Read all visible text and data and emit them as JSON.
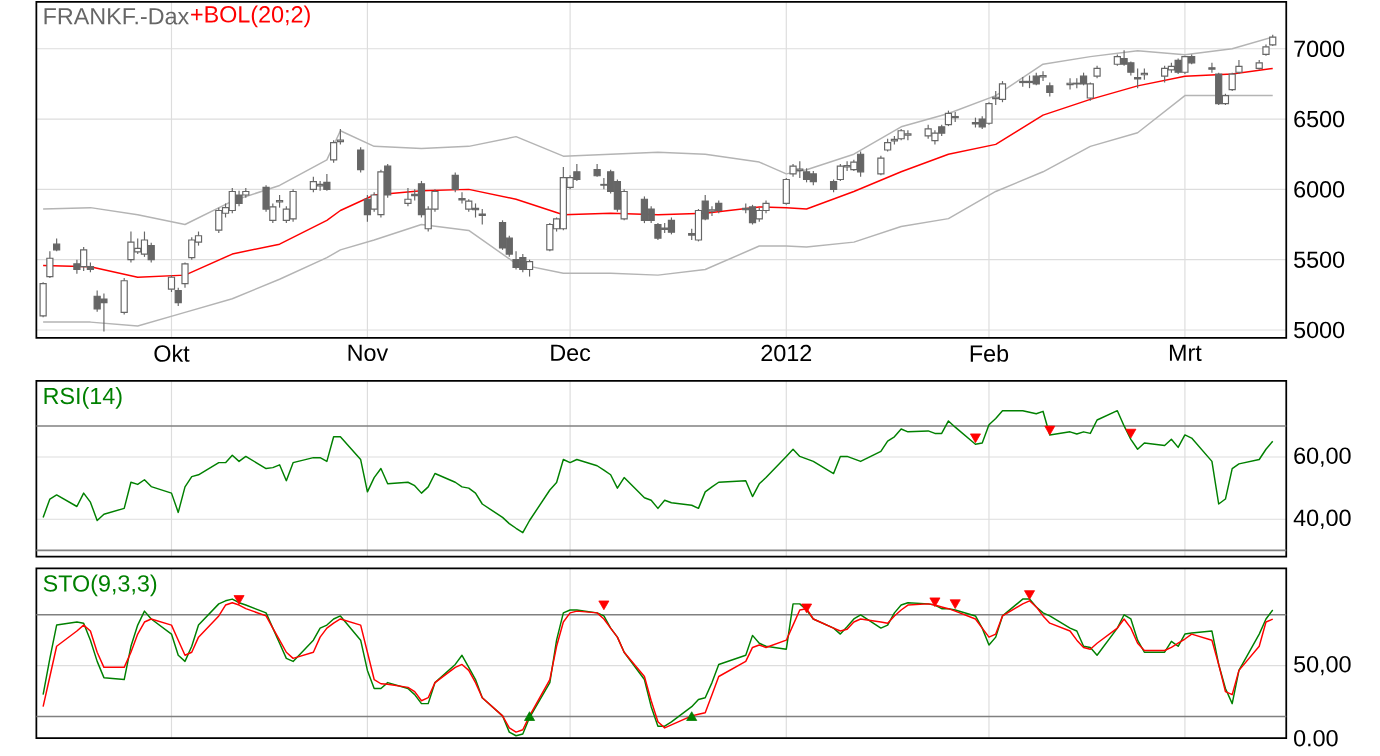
{
  "chart_data": [
    {
      "type": "candlestick",
      "title": "FRANKF.-Dax",
      "color": "#666666",
      "x": [
        "2011-09-14",
        "2011-09-15",
        "2011-09-16",
        "2011-09-19",
        "2011-09-20",
        "2011-09-21",
        "2011-09-22",
        "2011-09-23",
        "2011-09-26",
        "2011-09-27",
        "2011-09-28",
        "2011-09-29",
        "2011-09-30",
        "2011-10-03",
        "2011-10-04",
        "2011-10-05",
        "2011-10-06",
        "2011-10-07",
        "2011-10-10",
        "2011-10-11",
        "2011-10-12",
        "2011-10-13",
        "2011-10-14",
        "2011-10-17",
        "2011-10-18",
        "2011-10-19",
        "2011-10-20",
        "2011-10-21",
        "2011-10-24",
        "2011-10-25",
        "2011-10-26",
        "2011-10-27",
        "2011-10-28",
        "2011-10-31",
        "2011-11-01",
        "2011-11-02",
        "2011-11-03",
        "2011-11-04",
        "2011-11-07",
        "2011-11-08",
        "2011-11-09",
        "2011-11-10",
        "2011-11-11",
        "2011-11-14",
        "2011-11-15",
        "2011-11-16",
        "2011-11-17",
        "2011-11-18",
        "2011-11-21",
        "2011-11-22",
        "2011-11-23",
        "2011-11-24",
        "2011-11-25",
        "2011-11-28",
        "2011-11-29",
        "2011-11-30",
        "2011-12-01",
        "2011-12-02",
        "2011-12-05",
        "2011-12-06",
        "2011-12-07",
        "2011-12-08",
        "2011-12-09",
        "2011-12-12",
        "2011-12-13",
        "2011-12-14",
        "2011-12-15",
        "2011-12-16",
        "2011-12-19",
        "2011-12-20",
        "2011-12-21",
        "2011-12-22",
        "2011-12-23",
        "2011-12-27",
        "2011-12-28",
        "2011-12-29",
        "2011-12-30",
        "2012-01-02",
        "2012-01-03",
        "2012-01-04",
        "2012-01-05",
        "2012-01-06",
        "2012-01-09",
        "2012-01-10",
        "2012-01-11",
        "2012-01-12",
        "2012-01-13",
        "2012-01-16",
        "2012-01-17",
        "2012-01-18",
        "2012-01-19",
        "2012-01-20",
        "2012-01-23",
        "2012-01-24",
        "2012-01-25",
        "2012-01-26",
        "2012-01-27",
        "2012-01-30",
        "2012-01-31",
        "2012-02-01",
        "2012-02-02",
        "2012-02-03",
        "2012-02-06",
        "2012-02-07",
        "2012-02-08",
        "2012-02-09",
        "2012-02-10",
        "2012-02-13",
        "2012-02-14",
        "2012-02-15",
        "2012-02-16",
        "2012-02-17",
        "2012-02-20",
        "2012-02-21",
        "2012-02-22",
        "2012-02-23",
        "2012-02-24",
        "2012-02-27",
        "2012-02-28",
        "2012-02-29",
        "2012-03-01",
        "2012-03-02",
        "2012-03-05",
        "2012-03-06",
        "2012-03-07",
        "2012-03-08",
        "2012-03-09",
        "2012-03-12",
        "2012-03-13",
        "2012-03-14"
      ],
      "ohlc": [
        [
          5100,
          5340,
          5090,
          5330
        ],
        [
          5380,
          5560,
          5370,
          5510
        ],
        [
          5610,
          5650,
          5560,
          5570
        ],
        [
          5470,
          5500,
          5400,
          5430
        ],
        [
          5450,
          5590,
          5420,
          5570
        ],
        [
          5450,
          5480,
          5410,
          5430
        ],
        [
          5240,
          5280,
          5130,
          5150
        ],
        [
          5220,
          5260,
          4990,
          5195
        ],
        [
          5125,
          5370,
          5110,
          5350
        ],
        [
          5500,
          5700,
          5480,
          5625
        ],
        [
          5555,
          5650,
          5540,
          5580
        ],
        [
          5540,
          5700,
          5520,
          5640
        ],
        [
          5600,
          5620,
          5480,
          5500
        ],
        [
          5290,
          5390,
          5270,
          5375
        ],
        [
          5280,
          5300,
          5170,
          5195
        ],
        [
          5330,
          5480,
          5300,
          5470
        ],
        [
          5515,
          5660,
          5500,
          5640
        ],
        [
          5625,
          5700,
          5600,
          5670
        ],
        [
          5710,
          5870,
          5690,
          5850
        ],
        [
          5830,
          5900,
          5800,
          5870
        ],
        [
          5850,
          6010,
          5830,
          5985
        ],
        [
          5960,
          5990,
          5880,
          5900
        ],
        [
          5960,
          6010,
          5940,
          5985
        ],
        [
          6014,
          6030,
          5840,
          5860
        ],
        [
          5780,
          5900,
          5760,
          5875
        ],
        [
          5910,
          5960,
          5870,
          5920
        ],
        [
          5780,
          5880,
          5760,
          5860
        ],
        [
          5790,
          6000,
          5770,
          5985
        ],
        [
          6000,
          6090,
          5980,
          6055
        ],
        [
          6025,
          6060,
          5990,
          6035
        ],
        [
          6050,
          6110,
          5990,
          6000
        ],
        [
          6210,
          6350,
          6190,
          6333
        ],
        [
          6340,
          6430,
          6320,
          6350
        ],
        [
          6280,
          6300,
          6120,
          6140
        ],
        [
          5930,
          5960,
          5770,
          5820
        ],
        [
          5860,
          5980,
          5840,
          5960
        ],
        [
          5820,
          6140,
          5800,
          6125
        ],
        [
          6165,
          6180,
          5940,
          5960
        ],
        [
          5900,
          6010,
          5880,
          5930
        ],
        [
          5955,
          6000,
          5920,
          5965
        ],
        [
          6040,
          6060,
          5800,
          5820
        ],
        [
          5720,
          5880,
          5700,
          5860
        ],
        [
          5860,
          6000,
          5840,
          5985
        ],
        [
          6100,
          6120,
          5980,
          6000
        ],
        [
          5935,
          5980,
          5900,
          5925
        ],
        [
          5860,
          5930,
          5840,
          5917
        ],
        [
          5865,
          5900,
          5800,
          5855
        ],
        [
          5825,
          5860,
          5750,
          5815
        ],
        [
          5764,
          5780,
          5570,
          5583
        ],
        [
          5653,
          5670,
          5520,
          5540
        ],
        [
          5500,
          5560,
          5430,
          5445
        ],
        [
          5514,
          5540,
          5410,
          5430
        ],
        [
          5430,
          5500,
          5380,
          5486
        ],
        [
          5570,
          5760,
          5560,
          5750
        ],
        [
          5720,
          5800,
          5700,
          5790
        ],
        [
          5720,
          6160,
          5710,
          6083
        ],
        [
          6014,
          6100,
          6000,
          6083
        ],
        [
          6125,
          6180,
          6060,
          6070
        ],
        [
          6140,
          6180,
          6090,
          6097
        ],
        [
          6035,
          6080,
          6000,
          6030
        ],
        [
          6125,
          6140,
          5970,
          5985
        ],
        [
          6055,
          6070,
          5840,
          5860
        ],
        [
          5790,
          6000,
          5780,
          5985
        ],
        [
          5930,
          5950,
          5760,
          5780
        ],
        [
          5860,
          5880,
          5760,
          5780
        ],
        [
          5750,
          5760,
          5640,
          5653
        ],
        [
          5715,
          5760,
          5690,
          5725
        ],
        [
          5780,
          5800,
          5680,
          5695
        ],
        [
          5685,
          5720,
          5640,
          5675
        ],
        [
          5640,
          5860,
          5630,
          5850
        ],
        [
          5917,
          5960,
          5780,
          5790
        ],
        [
          5845,
          5880,
          5810,
          5855
        ],
        [
          5900,
          5920,
          5830,
          5850
        ],
        [
          5865,
          5900,
          5830,
          5855
        ],
        [
          5875,
          5890,
          5750,
          5764
        ],
        [
          5790,
          5870,
          5770,
          5850
        ],
        [
          5850,
          5920,
          5830,
          5900
        ],
        [
          5900,
          6080,
          5890,
          6070
        ],
        [
          6110,
          6180,
          6090,
          6165
        ],
        [
          6135,
          6200,
          6080,
          6145
        ],
        [
          6125,
          6150,
          6050,
          6070
        ],
        [
          6110,
          6130,
          6030,
          6055
        ],
        [
          6055,
          6070,
          5980,
          6000
        ],
        [
          6070,
          6180,
          6060,
          6165
        ],
        [
          6160,
          6200,
          6130,
          6170
        ],
        [
          6140,
          6210,
          6130,
          6194
        ],
        [
          6250,
          6270,
          6090,
          6125
        ],
        [
          6110,
          6240,
          6100,
          6222
        ],
        [
          6280,
          6360,
          6270,
          6333
        ],
        [
          6345,
          6380,
          6320,
          6355
        ],
        [
          6360,
          6430,
          6350,
          6417
        ],
        [
          6385,
          6420,
          6350,
          6395
        ],
        [
          6380,
          6460,
          6360,
          6430
        ],
        [
          6347,
          6420,
          6320,
          6400
        ],
        [
          6445,
          6460,
          6380,
          6400
        ],
        [
          6460,
          6560,
          6450,
          6540
        ],
        [
          6510,
          6550,
          6480,
          6518
        ],
        [
          6475,
          6510,
          6440,
          6465
        ],
        [
          6500,
          6520,
          6430,
          6445
        ],
        [
          6470,
          6620,
          6460,
          6610
        ],
        [
          6645,
          6700,
          6600,
          6655
        ],
        [
          6640,
          6770,
          6620,
          6750
        ],
        [
          6760,
          6800,
          6730,
          6768
        ],
        [
          6768,
          6810,
          6720,
          6760
        ],
        [
          6805,
          6830,
          6740,
          6750
        ],
        [
          6800,
          6840,
          6770,
          6810
        ],
        [
          6736,
          6760,
          6660,
          6690
        ],
        [
          6745,
          6790,
          6710,
          6755
        ],
        [
          6755,
          6790,
          6720,
          6750
        ],
        [
          6805,
          6830,
          6740,
          6750
        ],
        [
          6650,
          6760,
          6630,
          6750
        ],
        [
          6805,
          6880,
          6790,
          6860
        ],
        [
          6890,
          6960,
          6880,
          6944
        ],
        [
          6930,
          6990,
          6880,
          6890
        ],
        [
          6900,
          6910,
          6810,
          6833
        ],
        [
          6795,
          6860,
          6720,
          6785
        ],
        [
          6815,
          6860,
          6780,
          6825
        ],
        [
          6805,
          6880,
          6760,
          6860
        ],
        [
          6850,
          6900,
          6830,
          6875
        ],
        [
          6917,
          6930,
          6820,
          6833
        ],
        [
          6833,
          6950,
          6820,
          6944
        ],
        [
          6944,
          6960,
          6890,
          6900
        ],
        [
          6865,
          6900,
          6830,
          6855
        ],
        [
          6820,
          6830,
          6600,
          6610
        ],
        [
          6610,
          6680,
          6600,
          6667
        ],
        [
          6710,
          6830,
          6700,
          6820
        ],
        [
          6833,
          6920,
          6820,
          6875
        ],
        [
          6860,
          6920,
          6850,
          6900
        ],
        [
          6960,
          7030,
          6950,
          7014
        ],
        [
          7028,
          7100,
          7020,
          7083
        ]
      ],
      "series": [
        {
          "type": "line",
          "color": "#b4b4b4",
          "x": [
            "2011-09-14",
            "2011-09-21",
            "2011-09-28",
            "2011-10-05",
            "2011-10-12",
            "2011-10-19",
            "2011-10-26",
            "2011-10-28",
            "2011-11-02",
            "2011-11-09",
            "2011-11-16",
            "2011-11-23",
            "2011-11-30",
            "2011-12-07",
            "2011-12-14",
            "2011-12-21",
            "2011-12-29",
            "2012-01-02",
            "2012-01-05",
            "2012-01-12",
            "2012-01-19",
            "2012-01-26",
            "2012-02-02",
            "2012-02-09",
            "2012-02-16",
            "2012-02-23",
            "2012-03-01",
            "2012-03-08",
            "2012-03-14"
          ],
          "values": [
            5860,
            5870,
            5820,
            5750,
            5917,
            6028,
            6210,
            6417,
            6306,
            6290,
            6306,
            6375,
            6236,
            6250,
            6264,
            6250,
            6194,
            6110,
            6140,
            6250,
            6445,
            6540,
            6667,
            6890,
            6944,
            6986,
            6958,
            7000,
            7083
          ]
        },
        {
          "type": "line",
          "name": "+BOL(20;2)",
          "color": "#ff0000",
          "x": [
            "2011-09-14",
            "2011-09-21",
            "2011-09-28",
            "2011-10-05",
            "2011-10-12",
            "2011-10-19",
            "2011-10-26",
            "2011-10-28",
            "2011-11-02",
            "2011-11-09",
            "2011-11-16",
            "2011-11-23",
            "2011-11-30",
            "2011-12-07",
            "2011-12-14",
            "2011-12-21",
            "2011-12-29",
            "2012-01-02",
            "2012-01-05",
            "2012-01-12",
            "2012-01-19",
            "2012-01-26",
            "2012-02-02",
            "2012-02-09",
            "2012-02-16",
            "2012-02-23",
            "2012-03-01",
            "2012-03-08",
            "2012-03-14"
          ],
          "values": [
            5458,
            5450,
            5375,
            5390,
            5540,
            5610,
            5780,
            5850,
            5960,
            5990,
            6000,
            5930,
            5820,
            5830,
            5820,
            5830,
            5875,
            5870,
            5860,
            5985,
            6125,
            6250,
            6320,
            6528,
            6640,
            6736,
            6805,
            6820,
            6860
          ]
        },
        {
          "type": "line",
          "color": "#b4b4b4",
          "x": [
            "2011-09-14",
            "2011-09-21",
            "2011-09-28",
            "2011-10-05",
            "2011-10-12",
            "2011-10-19",
            "2011-10-26",
            "2011-10-28",
            "2011-11-02",
            "2011-11-09",
            "2011-11-16",
            "2011-11-23",
            "2011-11-30",
            "2011-12-07",
            "2011-12-14",
            "2011-12-21",
            "2011-12-29",
            "2012-01-02",
            "2012-01-05",
            "2012-01-12",
            "2012-01-19",
            "2012-01-26",
            "2012-02-02",
            "2012-02-09",
            "2012-02-16",
            "2012-02-23",
            "2012-03-01",
            "2012-03-08",
            "2012-03-14"
          ],
          "values": [
            5056,
            5056,
            5028,
            5125,
            5222,
            5361,
            5514,
            5570,
            5640,
            5750,
            5708,
            5472,
            5403,
            5403,
            5390,
            5430,
            5597,
            5597,
            5590,
            5625,
            5736,
            5792,
            5985,
            6125,
            6306,
            6403,
            6667,
            6667,
            6667
          ]
        }
      ],
      "xlim": [
        "2011-09-13",
        "2012-03-16"
      ],
      "xticks": [
        {
          "value": "2011-10-03",
          "label": "Okt"
        },
        {
          "value": "2011-11-01",
          "label": "Nov"
        },
        {
          "value": "2011-12-01",
          "label": "Dec"
        },
        {
          "value": "2012-01-02",
          "label": "2012"
        },
        {
          "value": "2012-02-01",
          "label": "Feb"
        },
        {
          "value": "2012-03-01",
          "label": "Mrt"
        }
      ],
      "ylim": [
        4944,
        7333
      ],
      "yticks": [
        5000,
        5500,
        6000,
        6500,
        7000
      ],
      "grid": true
    },
    {
      "type": "line",
      "title": "RSI(14)",
      "tick_labels": "y",
      "x": [
        "2011-09-14",
        "2011-09-15",
        "2011-09-16",
        "2011-09-19",
        "2011-09-20",
        "2011-09-21",
        "2011-09-22",
        "2011-09-23",
        "2011-09-26",
        "2011-09-27",
        "2011-09-28",
        "2011-09-29",
        "2011-09-30",
        "2011-10-03",
        "2011-10-04",
        "2011-10-05",
        "2011-10-06",
        "2011-10-07",
        "2011-10-10",
        "2011-10-11",
        "2011-10-12",
        "2011-10-13",
        "2011-10-14",
        "2011-10-17",
        "2011-10-18",
        "2011-10-19",
        "2011-10-20",
        "2011-10-21",
        "2011-10-24",
        "2011-10-25",
        "2011-10-26",
        "2011-10-27",
        "2011-10-28",
        "2011-10-31",
        "2011-11-01",
        "2011-11-02",
        "2011-11-03",
        "2011-11-04",
        "2011-11-07",
        "2011-11-08",
        "2011-11-09",
        "2011-11-10",
        "2011-11-11",
        "2011-11-14",
        "2011-11-15",
        "2011-11-16",
        "2011-11-17",
        "2011-11-18",
        "2011-11-21",
        "2011-11-22",
        "2011-11-23",
        "2011-11-24",
        "2011-11-25",
        "2011-11-28",
        "2011-11-29",
        "2011-11-30",
        "2011-12-01",
        "2011-12-02",
        "2011-12-05",
        "2011-12-06",
        "2011-12-07",
        "2011-12-08",
        "2011-12-09",
        "2011-12-12",
        "2011-12-13",
        "2011-12-14",
        "2011-12-15",
        "2011-12-16",
        "2011-12-19",
        "2011-12-20",
        "2011-12-21",
        "2011-12-22",
        "2011-12-23",
        "2011-12-27",
        "2011-12-28",
        "2011-12-29",
        "2011-12-30",
        "2012-01-02",
        "2012-01-03",
        "2012-01-04",
        "2012-01-05",
        "2012-01-06",
        "2012-01-09",
        "2012-01-10",
        "2012-01-11",
        "2012-01-12",
        "2012-01-13",
        "2012-01-16",
        "2012-01-17",
        "2012-01-18",
        "2012-01-19",
        "2012-01-20",
        "2012-01-23",
        "2012-01-24",
        "2012-01-25",
        "2012-01-26",
        "2012-01-27",
        "2012-01-30",
        "2012-01-31",
        "2012-02-01",
        "2012-02-02",
        "2012-02-03",
        "2012-02-06",
        "2012-02-07",
        "2012-02-08",
        "2012-02-09",
        "2012-02-10",
        "2012-02-13",
        "2012-02-14",
        "2012-02-15",
        "2012-02-16",
        "2012-02-17",
        "2012-02-20",
        "2012-02-21",
        "2012-02-22",
        "2012-02-23",
        "2012-02-24",
        "2012-02-27",
        "2012-02-28",
        "2012-02-29",
        "2012-03-01",
        "2012-03-02",
        "2012-03-05",
        "2012-03-06",
        "2012-03-07",
        "2012-03-08",
        "2012-03-09",
        "2012-03-12",
        "2012-03-13",
        "2012-03-14"
      ],
      "series": [
        {
          "type": "line",
          "color": "#008000",
          "values": [
            40.6,
            46.5,
            47.8,
            44.1,
            48.4,
            45.5,
            39.6,
            41.6,
            43.5,
            51.9,
            51.2,
            52.7,
            50.5,
            48.4,
            42.2,
            50.4,
            53.7,
            54.3,
            58.2,
            58.2,
            60.6,
            58.6,
            60.2,
            56.3,
            56.6,
            57.5,
            52.4,
            58.2,
            59.8,
            59.8,
            58.6,
            66.5,
            66.5,
            59.2,
            48.8,
            53.4,
            56.3,
            51.4,
            51.9,
            50.8,
            48.4,
            50.4,
            54.7,
            51.9,
            50.4,
            50.0,
            48.4,
            44.9,
            40.6,
            38.6,
            37.1,
            35.7,
            39.6,
            49.4,
            51.8,
            59.2,
            58.2,
            59.2,
            57.2,
            55.8,
            54.3,
            50.0,
            53.4,
            46.9,
            46.1,
            43.5,
            46.1,
            45.3,
            44.5,
            43.5,
            48.8,
            50.4,
            51.9,
            52.4,
            47.3,
            51.4,
            53.4,
            60.2,
            62.5,
            60.2,
            59.4,
            58.6,
            54.7,
            60.2,
            60.2,
            59.4,
            58.6,
            61.8,
            65.1,
            66.5,
            69.0,
            68.1,
            68.4,
            67.6,
            67.6,
            71.6,
            69.6,
            64.1,
            64.5,
            70.4,
            72.4,
            74.9,
            74.9,
            74.4,
            73.9,
            74.7,
            67.1,
            68.1,
            67.4,
            68.1,
            67.6,
            71.9,
            74.9,
            70.0,
            65.7,
            62.5,
            64.5,
            63.7,
            65.7,
            63.1,
            67.1,
            66.1,
            58.6,
            44.9,
            46.5,
            56.3,
            57.8,
            59.2,
            62.5,
            65.1
          ]
        },
        {
          "type": "scatter",
          "color": "#ff0000",
          "marker": "triangle",
          "x": [
            "2012-01-30",
            "2012-02-10",
            "2012-02-22"
          ],
          "values": [
            66.5,
            69.0,
            68.0
          ]
        }
      ],
      "ref_lines": [
        {
          "axis": "y",
          "value": 70,
          "color": "#808080"
        },
        {
          "axis": "y",
          "value": 30,
          "color": "#808080"
        }
      ],
      "xlim": [
        "2011-09-13",
        "2012-03-16"
      ],
      "xticks": [
        {
          "value": "2011-10-03",
          "label": null
        },
        {
          "value": "2011-11-01",
          "label": null
        },
        {
          "value": "2011-12-01",
          "label": null
        },
        {
          "value": "2012-01-02",
          "label": null
        },
        {
          "value": "2012-02-01",
          "label": null
        },
        {
          "value": "2012-03-01",
          "label": null
        }
      ],
      "ylim": [
        28,
        84.5
      ],
      "yticks": [
        {
          "value": 40,
          "label": "40,00"
        },
        {
          "value": 60,
          "label": "60,00"
        }
      ],
      "grid": true
    },
    {
      "type": "line",
      "title": "STO(9,3,3)",
      "tick_labels": "y",
      "x": [
        "2011-09-14",
        "2011-09-15",
        "2011-09-16",
        "2011-09-19",
        "2011-09-20",
        "2011-09-21",
        "2011-09-22",
        "2011-09-23",
        "2011-09-26",
        "2011-09-27",
        "2011-09-28",
        "2011-09-29",
        "2011-09-30",
        "2011-10-03",
        "2011-10-04",
        "2011-10-05",
        "2011-10-06",
        "2011-10-07",
        "2011-10-10",
        "2011-10-11",
        "2011-10-12",
        "2011-10-13",
        "2011-10-14",
        "2011-10-17",
        "2011-10-18",
        "2011-10-19",
        "2011-10-20",
        "2011-10-21",
        "2011-10-24",
        "2011-10-25",
        "2011-10-26",
        "2011-10-27",
        "2011-10-28",
        "2011-10-31",
        "2011-11-01",
        "2011-11-02",
        "2011-11-03",
        "2011-11-04",
        "2011-11-07",
        "2011-11-08",
        "2011-11-09",
        "2011-11-10",
        "2011-11-11",
        "2011-11-14",
        "2011-11-15",
        "2011-11-16",
        "2011-11-17",
        "2011-11-18",
        "2011-11-21",
        "2011-11-22",
        "2011-11-23",
        "2011-11-24",
        "2011-11-25",
        "2011-11-28",
        "2011-11-29",
        "2011-11-30",
        "2011-12-01",
        "2011-12-02",
        "2011-12-05",
        "2011-12-06",
        "2011-12-07",
        "2011-12-08",
        "2011-12-09",
        "2011-12-12",
        "2011-12-13",
        "2011-12-14",
        "2011-12-15",
        "2011-12-16",
        "2011-12-19",
        "2011-12-20",
        "2011-12-21",
        "2011-12-22",
        "2011-12-23",
        "2011-12-27",
        "2011-12-28",
        "2011-12-29",
        "2011-12-30",
        "2012-01-02",
        "2012-01-03",
        "2012-01-04",
        "2012-01-05",
        "2012-01-06",
        "2012-01-09",
        "2012-01-10",
        "2012-01-11",
        "2012-01-12",
        "2012-01-13",
        "2012-01-16",
        "2012-01-17",
        "2012-01-18",
        "2012-01-19",
        "2012-01-20",
        "2012-01-23",
        "2012-01-24",
        "2012-01-25",
        "2012-01-26",
        "2012-01-27",
        "2012-01-30",
        "2012-01-31",
        "2012-02-01",
        "2012-02-02",
        "2012-02-03",
        "2012-02-06",
        "2012-02-07",
        "2012-02-08",
        "2012-02-09",
        "2012-02-10",
        "2012-02-13",
        "2012-02-14",
        "2012-02-15",
        "2012-02-16",
        "2012-02-17",
        "2012-02-20",
        "2012-02-21",
        "2012-02-22",
        "2012-02-23",
        "2012-02-24",
        "2012-02-27",
        "2012-02-28",
        "2012-02-29",
        "2012-03-01",
        "2012-03-02",
        "2012-03-05",
        "2012-03-06",
        "2012-03-07",
        "2012-03-08",
        "2012-03-09",
        "2012-03-12",
        "2012-03-13",
        "2012-03-14"
      ],
      "series": [
        {
          "type": "line",
          "color": "#008000",
          "values": [
            30.0,
            55.0,
            77.9,
            80.0,
            79.2,
            67.5,
            52.9,
            41.7,
            40.4,
            63.3,
            77.9,
            87.5,
            82.1,
            71.7,
            57.1,
            52.9,
            63.3,
            77.9,
            92.5,
            94.6,
            95.8,
            93.3,
            91.7,
            86.3,
            75.8,
            65.4,
            55.0,
            52.9,
            67.5,
            75.8,
            77.9,
            82.1,
            84.2,
            67.5,
            46.7,
            34.2,
            34.2,
            38.3,
            34.2,
            30.0,
            23.8,
            23.8,
            38.3,
            50.8,
            57.1,
            48.8,
            40.4,
            27.9,
            15.4,
            4.2,
            1.7,
            2.9,
            14.2,
            38.3,
            67.5,
            86.3,
            88.3,
            88.3,
            86.3,
            84.2,
            75.8,
            69.6,
            59.2,
            40.4,
            21.7,
            8.3,
            8.3,
            11.3,
            21.7,
            26.7,
            27.9,
            38.3,
            50.8,
            57.1,
            70.8,
            65.4,
            63.3,
            61.3,
            92.5,
            92.5,
            88.3,
            82.1,
            75.8,
            71.7,
            76.7,
            82.1,
            85.0,
            75.8,
            77.9,
            86.3,
            91.7,
            93.3,
            92.5,
            91.7,
            89.2,
            89.2,
            88.3,
            84.2,
            75.8,
            64.2,
            69.6,
            84.2,
            95.8,
            95.8,
            90.4,
            86.3,
            84.2,
            75.8,
            73.8,
            63.3,
            62.5,
            57.1,
            75.8,
            85.0,
            82.1,
            67.5,
            59.2,
            59.2,
            66.7,
            63.3,
            71.7,
            72.5,
            73.8,
            50.8,
            34.2,
            23.8,
            46.7,
            71.7,
            82.1,
            88.3
          ]
        },
        {
          "type": "line",
          "color": "#ff0000",
          "values": [
            21.7,
            42.5,
            63.3,
            73.8,
            77.9,
            73.8,
            59.2,
            48.8,
            48.8,
            59.2,
            71.7,
            80.0,
            82.1,
            77.9,
            67.5,
            57.1,
            59.2,
            69.6,
            84.2,
            91.7,
            93.3,
            91.7,
            89.2,
            84.2,
            75.8,
            67.5,
            59.2,
            55.0,
            59.2,
            69.6,
            75.8,
            79.2,
            82.1,
            77.9,
            59.2,
            40.4,
            37.5,
            37.1,
            35.0,
            32.1,
            25.8,
            27.9,
            38.3,
            48.8,
            50.8,
            46.7,
            38.3,
            27.9,
            15.4,
            7.1,
            4.2,
            5.8,
            15.4,
            40.4,
            63.3,
            80.0,
            86.3,
            87.5,
            86.3,
            82.1,
            75.8,
            69.6,
            59.2,
            42.5,
            25.8,
            11.3,
            7.1,
            9.2,
            15.4,
            16.5,
            17.5,
            30.0,
            42.5,
            52.9,
            62.5,
            64.2,
            62.5,
            67.5,
            77.9,
            88.3,
            89.2,
            82.1,
            75.8,
            73.8,
            75.0,
            80.0,
            82.1,
            80.0,
            79.2,
            84.2,
            88.3,
            91.7,
            92.5,
            91.7,
            90.4,
            89.2,
            87.5,
            82.1,
            75.8,
            69.6,
            71.7,
            84.2,
            92.5,
            94.6,
            90.4,
            84.2,
            79.2,
            73.8,
            67.5,
            62.5,
            61.3,
            65.4,
            75.8,
            82.1,
            75.8,
            65.4,
            60.4,
            60.4,
            62.5,
            65.4,
            68.3,
            71.7,
            67.5,
            50.8,
            32.1,
            30.0,
            46.7,
            63.3,
            80.0,
            82.0
          ]
        },
        {
          "type": "scatter",
          "color": "#ff0000",
          "marker": "triangle",
          "x": [
            "2011-10-13",
            "2011-12-06",
            "2012-01-05",
            "2012-01-24",
            "2012-01-27",
            "2012-02-07"
          ],
          "values": [
            96.2,
            92.5,
            90.4,
            94.6,
            93.3,
            99.6
          ]
        },
        {
          "type": "scatter",
          "color": "#008000",
          "marker": "triangle",
          "x": [
            "2011-11-25",
            "2011-12-19"
          ],
          "values": [
            14.2,
            14.2
          ]
        }
      ],
      "ref_lines": [
        {
          "axis": "y",
          "value": 85,
          "color": "#808080"
        },
        {
          "axis": "y",
          "value": 15,
          "color": "#808080"
        }
      ],
      "xlim": [
        "2011-09-13",
        "2012-03-16"
      ],
      "xticks": [
        {
          "value": "2011-10-03",
          "label": null
        },
        {
          "value": "2011-11-01",
          "label": null
        },
        {
          "value": "2011-12-01",
          "label": null
        },
        {
          "value": "2012-01-02",
          "label": null
        },
        {
          "value": "2012-02-01",
          "label": null
        },
        {
          "value": "2012-03-01",
          "label": null
        }
      ],
      "ylim": [
        0,
        117
      ],
      "yticks": [
        {
          "value": 0,
          "label": "0.00"
        },
        {
          "value": 50,
          "label": "50,00"
        }
      ],
      "grid": true
    }
  ]
}
